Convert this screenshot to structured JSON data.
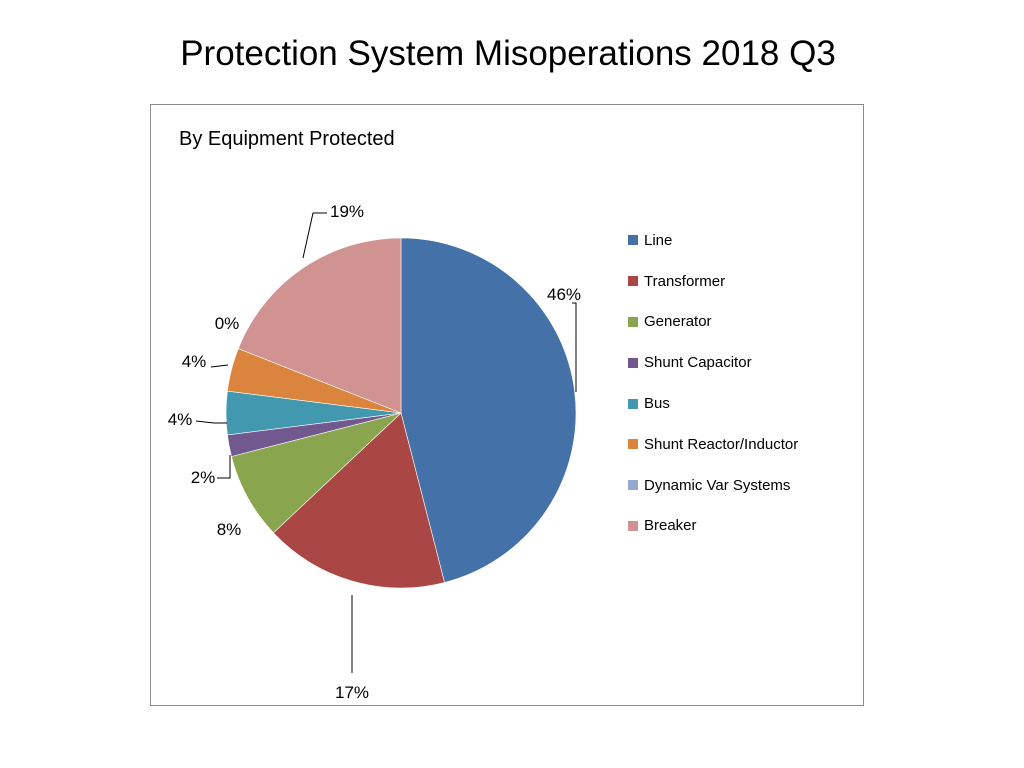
{
  "page": {
    "title": "Protection System Misoperations 2018 Q3"
  },
  "chart_data": {
    "type": "pie",
    "title": "By Equipment Protected",
    "legend_position": "right",
    "start_angle_deg": 0,
    "direction": "clockwise",
    "slices": [
      {
        "name": "Line",
        "value": 46,
        "label": "46%",
        "color": "#4472a8"
      },
      {
        "name": "Transformer",
        "value": 17,
        "label": "17%",
        "color": "#aa4643"
      },
      {
        "name": "Generator",
        "value": 8,
        "label": "8%",
        "color": "#89a54e"
      },
      {
        "name": "Shunt Capacitor",
        "value": 2,
        "label": "2%",
        "color": "#71588f"
      },
      {
        "name": "Bus",
        "value": 4,
        "label": "4%",
        "color": "#4198af"
      },
      {
        "name": "Shunt Reactor/Inductor",
        "value": 4,
        "label": "4%",
        "color": "#db843d"
      },
      {
        "name": "Dynamic Var Systems",
        "value": 0,
        "label": "0%",
        "color": "#93a9cf"
      },
      {
        "name": "Breaker",
        "value": 19,
        "label": "19%",
        "color": "#d19392"
      }
    ]
  }
}
